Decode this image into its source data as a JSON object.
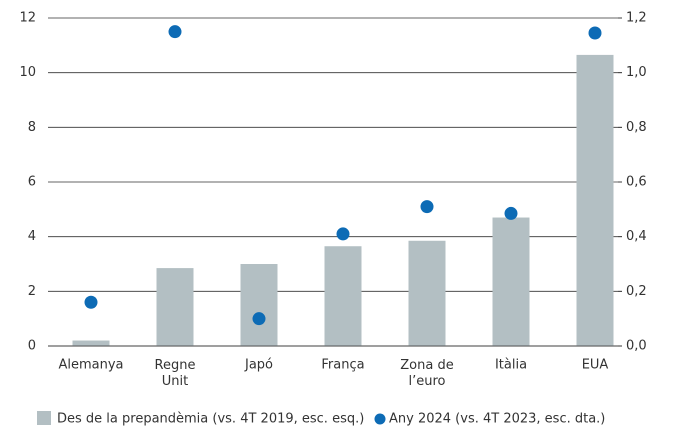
{
  "chart_data": {
    "type": "bar_dot",
    "categories": [
      "Alemanya",
      "Regne\nUnit",
      "Japó",
      "França",
      "Zona de\nl’euro",
      "Itàlia",
      "EUA"
    ],
    "series": [
      {
        "name": "Des de la prepandèmia (vs. 4T 2019, esc. esq.)",
        "color": "#b3bfc3",
        "values": [
          0.2,
          2.85,
          3.0,
          3.65,
          3.85,
          4.7,
          10.65
        ]
      },
      {
        "name": "Any 2024 (vs. 4T 2023, esc. dta.)",
        "color": "#0d6bb5",
        "axis": "y2",
        "values": [
          0.16,
          1.15,
          0.1,
          0.41,
          0.51,
          0.485,
          1.145
        ]
      }
    ],
    "ylim": [
      0,
      12
    ],
    "yticks": [
      0,
      2,
      4,
      6,
      8,
      10,
      12
    ],
    "y2lim": [
      0,
      1.2
    ],
    "y2ticks": [
      {
        "value": 0,
        "label": "0,0"
      },
      {
        "value": 0.2,
        "label": "0,2"
      },
      {
        "value": 0.4,
        "label": "0,4"
      },
      {
        "value": 0.6,
        "label": "0,6"
      },
      {
        "value": 0.8,
        "label": "0,8"
      },
      {
        "value": 1.0,
        "label": "1,0"
      },
      {
        "value": 1.2,
        "label": "1,2"
      }
    ],
    "grid": true
  }
}
